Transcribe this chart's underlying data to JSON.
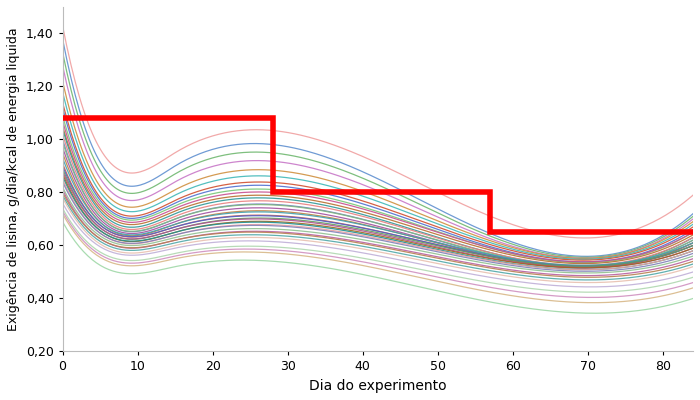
{
  "xlabel": "Dia do experimento",
  "ylabel": "Exigência de lisina, g/dia/kcal de energia liquida",
  "xlim": [
    0,
    84
  ],
  "ylim": [
    0.2,
    1.5
  ],
  "yticks": [
    0.2,
    0.4,
    0.6,
    0.8,
    1.0,
    1.2,
    1.4
  ],
  "xticks": [
    0,
    10,
    20,
    30,
    40,
    50,
    60,
    70,
    80
  ],
  "step_x": [
    0,
    28,
    28,
    57,
    57,
    84
  ],
  "step_y": [
    1.08,
    1.08,
    0.8,
    0.8,
    0.65,
    0.65
  ],
  "n_animals": 36,
  "individual_colors": [
    "#f0a0a0",
    "#6090d0",
    "#70b870",
    "#c878c8",
    "#d09040",
    "#40b8b8",
    "#d05030",
    "#5070d0",
    "#78c878",
    "#c85090",
    "#b87030",
    "#309898",
    "#e88080",
    "#7080c0",
    "#80b880",
    "#a050a0",
    "#c08040",
    "#40a0b0",
    "#c86050",
    "#5060c8",
    "#60a060",
    "#b05090",
    "#a06820",
    "#209090",
    "#e8a0a0",
    "#8080b8",
    "#90c090",
    "#b860a0",
    "#b88050",
    "#50a8a8",
    "#e8c0b0",
    "#c0b0d8",
    "#b0d8b0",
    "#d090c0",
    "#d8b888",
    "#a0d8a8",
    "#d0d0a0",
    "#909090",
    "#d8a0d0",
    "#a0c8d0",
    "#d0d080",
    "#b0b0e0",
    "#c8e0b0",
    "#d8a0b0"
  ],
  "start_values": [
    1.43,
    1.38,
    1.33,
    1.28,
    1.22,
    1.18,
    1.14,
    1.12,
    1.09,
    1.07,
    1.05,
    1.04,
    1.02,
    1.0,
    0.99,
    0.97,
    0.95,
    0.93,
    0.91,
    0.9,
    0.89,
    0.88,
    0.87,
    0.86,
    0.85,
    0.84,
    0.82,
    0.81,
    0.8,
    0.79,
    0.78,
    0.76,
    0.74,
    0.73,
    0.72,
    0.69
  ],
  "end_values": [
    0.79,
    0.72,
    0.71,
    0.7,
    0.69,
    0.68,
    0.67,
    0.66,
    0.65,
    0.65,
    0.64,
    0.63,
    0.63,
    0.62,
    0.62,
    0.61,
    0.61,
    0.61,
    0.6,
    0.6,
    0.6,
    0.59,
    0.59,
    0.58,
    0.58,
    0.57,
    0.56,
    0.55,
    0.54,
    0.53,
    0.52,
    0.5,
    0.48,
    0.46,
    0.44,
    0.4
  ],
  "mid_values": [
    0.95,
    0.9,
    0.87,
    0.84,
    0.81,
    0.79,
    0.77,
    0.76,
    0.75,
    0.74,
    0.73,
    0.72,
    0.71,
    0.7,
    0.7,
    0.69,
    0.68,
    0.68,
    0.67,
    0.67,
    0.66,
    0.66,
    0.65,
    0.65,
    0.64,
    0.64,
    0.63,
    0.62,
    0.62,
    0.61,
    0.6,
    0.59,
    0.57,
    0.56,
    0.55,
    0.52
  ]
}
